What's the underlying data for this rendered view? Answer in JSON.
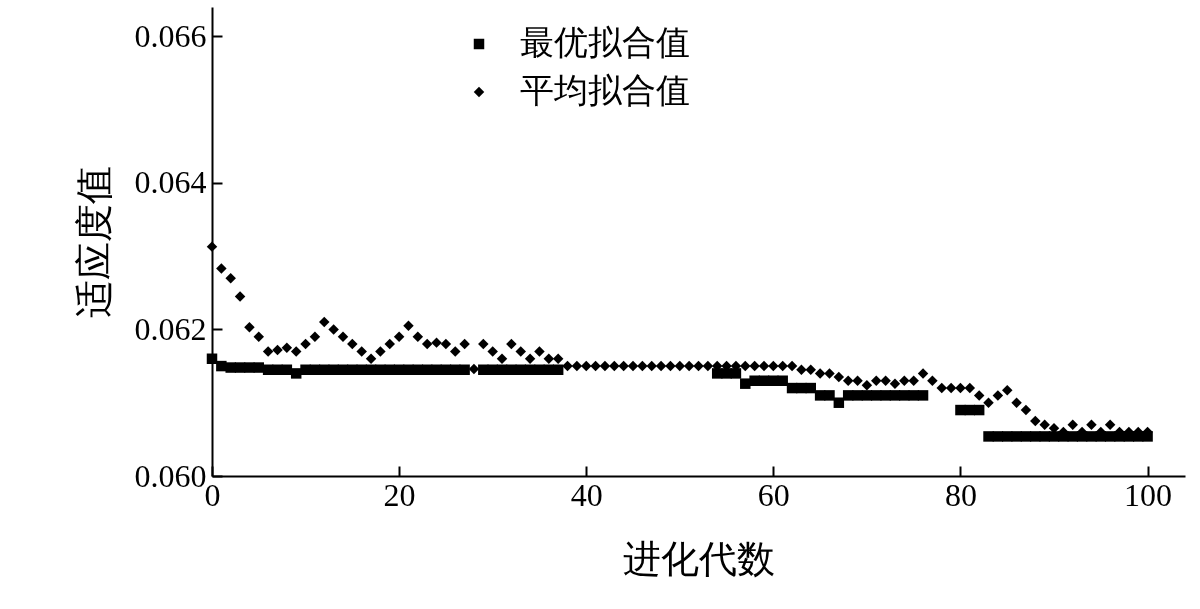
{
  "chart_data": {
    "type": "scatter",
    "xlabel": "进化代数",
    "ylabel": "适应度值",
    "legend": "top left",
    "grid": false,
    "x": [
      0,
      1,
      2,
      3,
      4,
      5,
      6,
      7,
      8,
      9,
      10,
      11,
      12,
      13,
      14,
      15,
      16,
      17,
      18,
      19,
      20,
      21,
      22,
      23,
      24,
      25,
      26,
      27,
      28,
      29,
      30,
      31,
      32,
      33,
      34,
      35,
      36,
      37,
      38,
      39,
      40,
      41,
      42,
      43,
      44,
      45,
      46,
      47,
      48,
      49,
      50,
      51,
      52,
      53,
      54,
      55,
      56,
      57,
      58,
      59,
      60,
      61,
      62,
      63,
      64,
      65,
      66,
      67,
      68,
      69,
      70,
      71,
      72,
      73,
      74,
      75,
      76,
      77,
      78,
      79,
      80,
      81,
      82,
      83,
      84,
      85,
      86,
      87,
      88,
      89,
      90,
      91,
      92,
      93,
      94,
      95,
      96,
      97,
      98,
      99,
      100
    ],
    "xlim": [
      0,
      104
    ],
    "xticks": [
      0,
      20,
      40,
      60,
      80,
      100
    ],
    "ylim": [
      0.06,
      0.0664
    ],
    "yticks": [
      {
        "value": 0.06,
        "label": "0.060"
      },
      {
        "value": 0.062,
        "label": "0.062"
      },
      {
        "value": 0.064,
        "label": "0.064"
      },
      {
        "value": 0.066,
        "label": "0.066"
      }
    ],
    "series": [
      {
        "name": "最优拟合值",
        "color": "#000000",
        "marker": "square",
        "values": [
          0.0616,
          0.0615,
          0.06148,
          0.06148,
          0.06148,
          0.06148,
          0.06145,
          0.06145,
          0.06145,
          0.0614,
          0.06145,
          0.06145,
          0.06145,
          0.06145,
          0.06145,
          0.06145,
          0.06145,
          0.06145,
          0.06145,
          0.06145,
          0.06145,
          0.06145,
          0.06145,
          0.06145,
          0.06145,
          0.06145,
          0.06145,
          0.06145,
          null,
          0.06145,
          0.06145,
          0.06145,
          0.06145,
          0.06145,
          0.06145,
          0.06145,
          0.06145,
          0.06145,
          null,
          null,
          null,
          null,
          null,
          null,
          null,
          null,
          null,
          null,
          null,
          null,
          null,
          null,
          null,
          null,
          0.0614,
          0.0614,
          0.0614,
          0.06126,
          0.0613,
          0.0613,
          0.0613,
          0.0613,
          0.0612,
          0.0612,
          0.0612,
          0.0611,
          0.0611,
          0.061,
          0.0611,
          0.0611,
          0.0611,
          0.0611,
          0.0611,
          0.0611,
          0.0611,
          0.0611,
          0.0611,
          null,
          null,
          null,
          0.0609,
          0.0609,
          0.0609,
          0.06054,
          0.06054,
          0.06054,
          0.06054,
          0.06054,
          0.06054,
          0.06054,
          0.06054,
          0.06054,
          0.06054,
          0.06054,
          0.06054,
          0.06054,
          0.06054,
          0.06054,
          0.06054,
          0.06054,
          0.06054
        ]
      },
      {
        "name": "平均拟合值",
        "color": "#000000",
        "marker": "diamond",
        "values": [
          0.06313,
          0.06283,
          0.0627,
          0.06245,
          0.06203,
          0.0619,
          0.0617,
          0.06172,
          0.06175,
          0.0617,
          0.0618,
          0.0619,
          0.0621,
          0.062,
          0.0619,
          0.0618,
          0.0617,
          0.0616,
          0.0617,
          0.0618,
          0.0619,
          0.06205,
          0.0619,
          0.0618,
          0.06182,
          0.0618,
          0.0617,
          0.0618,
          0.06146,
          0.0618,
          0.0617,
          0.0616,
          0.0618,
          0.0617,
          0.0616,
          0.0617,
          0.0616,
          0.0616,
          0.0615,
          0.0615,
          0.0615,
          0.0615,
          0.0615,
          0.0615,
          0.0615,
          0.0615,
          0.0615,
          0.0615,
          0.0615,
          0.0615,
          0.0615,
          0.0615,
          0.0615,
          0.0615,
          0.0615,
          0.0615,
          0.0615,
          0.0615,
          0.0615,
          0.0615,
          0.0615,
          0.0615,
          0.0615,
          0.06145,
          0.06145,
          0.0614,
          0.0614,
          0.06135,
          0.0613,
          0.0613,
          0.06124,
          0.0613,
          0.0613,
          0.06126,
          0.0613,
          0.0613,
          0.0614,
          0.0613,
          0.0612,
          0.0612,
          0.0612,
          0.0612,
          0.0611,
          0.061,
          0.0611,
          0.06117,
          0.061,
          0.0609,
          0.06075,
          0.0607,
          0.06065,
          0.0606,
          0.0607,
          0.0606,
          0.0607,
          0.0606,
          0.0607,
          0.0606,
          0.0606,
          0.0606,
          0.0606
        ]
      }
    ]
  }
}
